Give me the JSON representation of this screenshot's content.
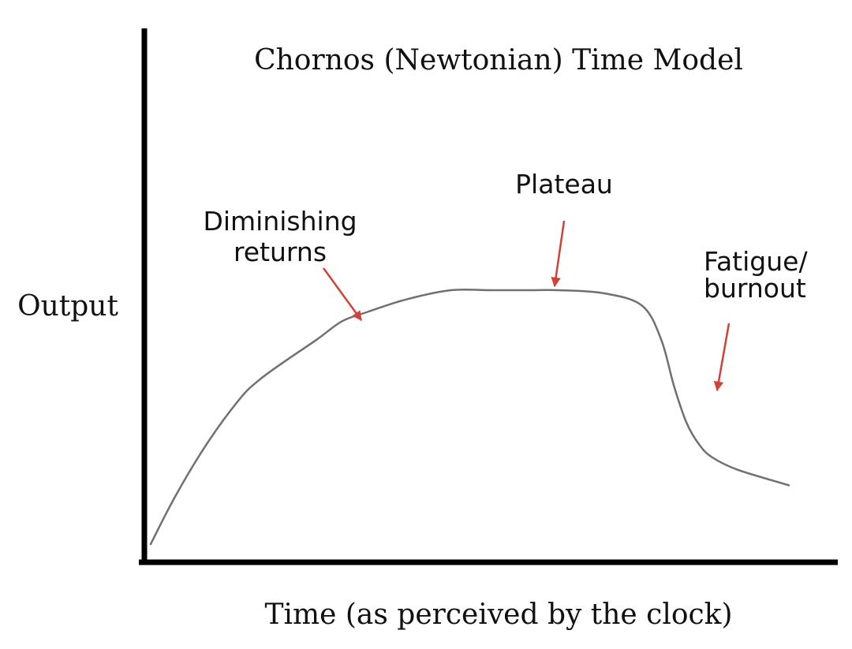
{
  "chart_data": {
    "type": "line",
    "title": "Chornos (Newtonian) Time Model",
    "xlabel": "Time (as perceived by the clock)",
    "ylabel": "Output",
    "xlim": [
      0,
      100
    ],
    "ylim": [
      0,
      100
    ],
    "grid": false,
    "ticks_shown": false,
    "colors": {
      "axis": "#000000",
      "curve": "#707070",
      "arrow": "#d0413a"
    },
    "series": [
      {
        "x": [
          0,
          4,
          9,
          14,
          17,
          21,
          26,
          30,
          34,
          40,
          47,
          53,
          59,
          64,
          71,
          77,
          80,
          82,
          84,
          86,
          88,
          92,
          100
        ],
        "y": [
          8,
          24,
          41,
          55,
          61,
          67,
          74,
          80,
          83,
          87,
          90,
          90,
          90,
          90,
          89,
          85,
          74,
          59,
          47,
          40,
          36,
          32,
          27
        ]
      }
    ],
    "annotations": [
      {
        "lines": [
          "Diminishing",
          "returns"
        ],
        "point": [
          33,
          82
        ],
        "align": "center"
      },
      {
        "lines": [
          "Plateau"
        ],
        "point": [
          63.5,
          90
        ],
        "align": "center"
      },
      {
        "lines": [
          "Fatigue/",
          "burnout"
        ],
        "point": [
          88,
          59
        ],
        "align": "left"
      }
    ]
  }
}
